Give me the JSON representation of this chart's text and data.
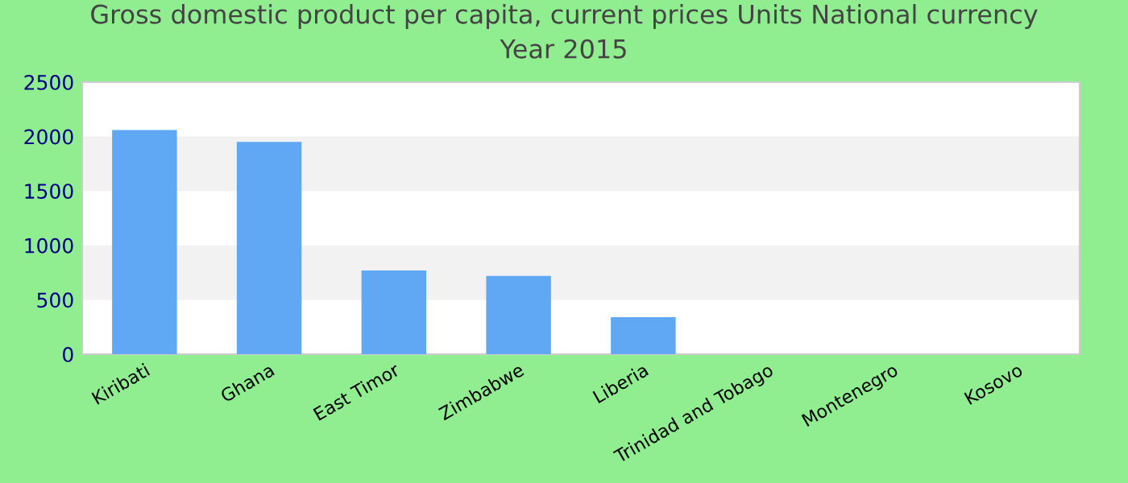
{
  "chart_data": {
    "type": "bar",
    "title": "Gross domestic product per capita, current prices Units National currency\nYear 2015",
    "categories": [
      "Kiribati",
      "Ghana",
      "East Timor",
      "Zimbabwe",
      "Liberia",
      "Trinidad and Tobago",
      "Montenegro",
      "Kosovo"
    ],
    "values": [
      2060,
      1950,
      770,
      720,
      340,
      null,
      null,
      null
    ],
    "color": "#60a8f4",
    "ylim": [
      0,
      2500
    ],
    "yticks": [
      0,
      500,
      1000,
      1500,
      2000,
      2500
    ]
  }
}
